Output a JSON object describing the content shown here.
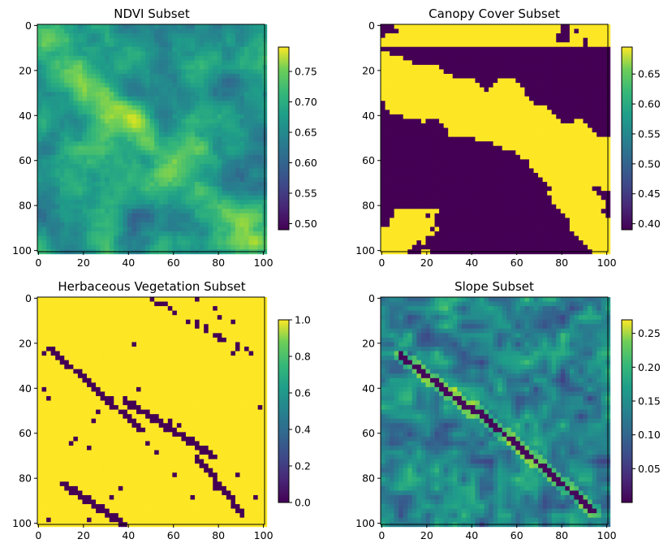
{
  "chart_data": [
    {
      "type": "heatmap",
      "title": "NDVI Subset",
      "grid_size": [
        101,
        101
      ],
      "xlim": [
        0,
        100
      ],
      "ylim": [
        100,
        0
      ],
      "x_ticks": [
        0,
        20,
        40,
        60,
        80,
        100
      ],
      "y_ticks": [
        0,
        20,
        40,
        60,
        80,
        100
      ],
      "colormap": "viridis",
      "color_range": [
        0.49,
        0.79
      ],
      "colorbar_ticks": [
        "0.50",
        "0.55",
        "0.60",
        "0.65",
        "0.70",
        "0.75"
      ],
      "colorbar_tick_values": [
        0.5,
        0.55,
        0.6,
        0.65,
        0.7,
        0.75
      ],
      "pattern": "continuous",
      "grid": false
    },
    {
      "type": "heatmap",
      "title": "Canopy Cover Subset",
      "grid_size": [
        101,
        101
      ],
      "xlim": [
        0,
        100
      ],
      "ylim": [
        100,
        0
      ],
      "x_ticks": [
        0,
        20,
        40,
        60,
        80,
        100
      ],
      "y_ticks": [
        0,
        20,
        40,
        60,
        80,
        100
      ],
      "colormap": "viridis",
      "color_range": [
        0.39,
        0.695
      ],
      "colorbar_ticks": [
        "0.40",
        "0.45",
        "0.50",
        "0.55",
        "0.60",
        "0.65"
      ],
      "colorbar_tick_values": [
        0.4,
        0.45,
        0.5,
        0.55,
        0.6,
        0.65
      ],
      "pattern": "binary",
      "grid": false
    },
    {
      "type": "heatmap",
      "title": "Herbaceous Vegetation Subset",
      "grid_size": [
        101,
        101
      ],
      "xlim": [
        0,
        100
      ],
      "ylim": [
        100,
        0
      ],
      "x_ticks": [
        0,
        20,
        40,
        60,
        80,
        100
      ],
      "y_ticks": [
        0,
        20,
        40,
        60,
        80,
        100
      ],
      "colormap": "viridis",
      "color_range": [
        0.0,
        1.0
      ],
      "colorbar_ticks": [
        "0.0",
        "0.2",
        "0.4",
        "0.6",
        "0.8",
        "1.0"
      ],
      "colorbar_tick_values": [
        0.0,
        0.2,
        0.4,
        0.6,
        0.8,
        1.0
      ],
      "pattern": "binary-lines",
      "grid": false
    },
    {
      "type": "heatmap",
      "title": "Slope Subset",
      "grid_size": [
        101,
        101
      ],
      "xlim": [
        0,
        100
      ],
      "ylim": [
        100,
        0
      ],
      "x_ticks": [
        0,
        20,
        40,
        60,
        80,
        100
      ],
      "y_ticks": [
        0,
        20,
        40,
        60,
        80,
        100
      ],
      "colormap": "viridis",
      "color_range": [
        0.0,
        0.27
      ],
      "colorbar_ticks": [
        "0.05",
        "0.10",
        "0.15",
        "0.20",
        "0.25"
      ],
      "colorbar_tick_values": [
        0.05,
        0.1,
        0.15,
        0.2,
        0.25
      ],
      "pattern": "smooth",
      "grid": false
    }
  ]
}
